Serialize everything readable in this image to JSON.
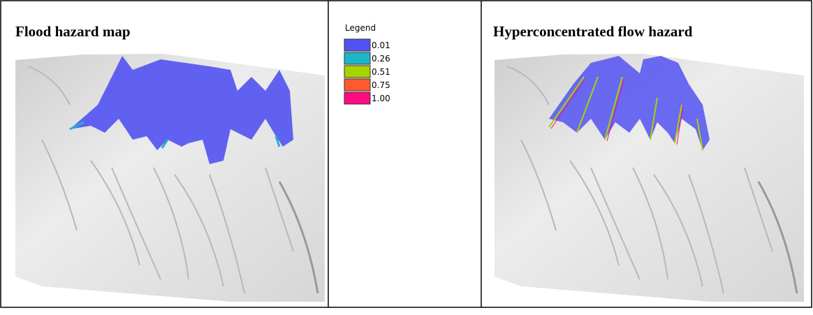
{
  "panels": [
    {
      "title": "Flood hazard map"
    },
    {
      "title": "Hyperconcentrated flow hazard"
    }
  ],
  "legend": {
    "title": "Legend",
    "items": [
      {
        "label": "0.01",
        "color": "#5252f2"
      },
      {
        "label": "0.26",
        "color": "#1cb6c6"
      },
      {
        "label": "0.51",
        "color": "#a6d400"
      },
      {
        "label": "0.75",
        "color": "#ff5a2e"
      },
      {
        "label": "1.00",
        "color": "#ff0a80"
      }
    ]
  }
}
